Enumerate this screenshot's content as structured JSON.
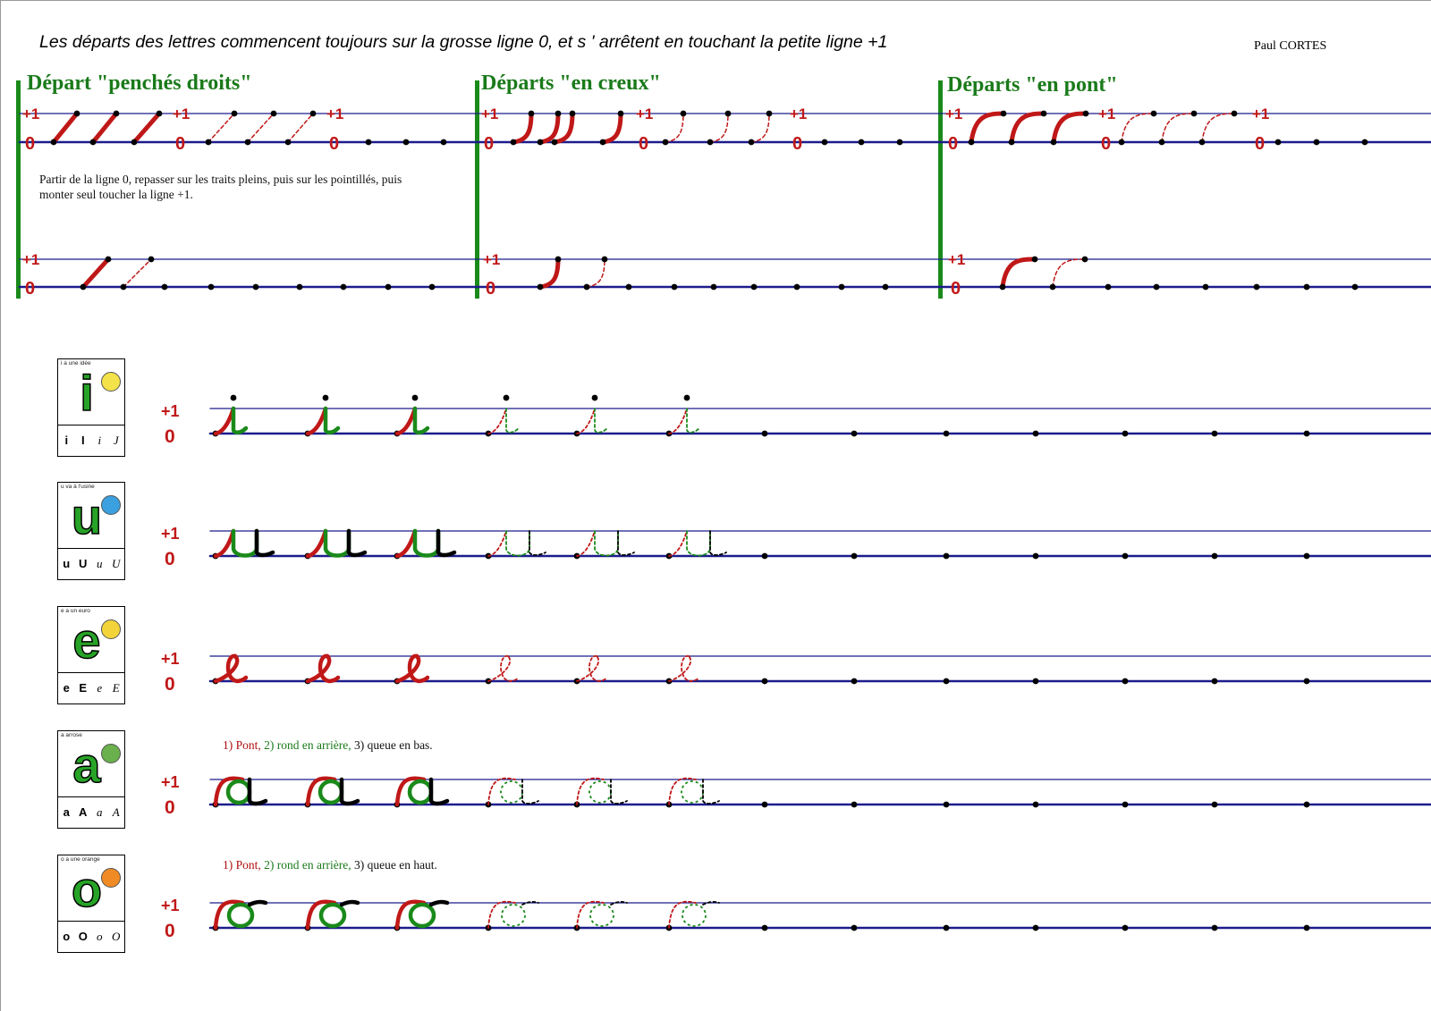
{
  "header": {
    "title": "Les départs des lettres commencent toujours sur la grosse ligne 0, et s ' arrêtent en touchant la petite ligne +1",
    "author": "Paul CORTES"
  },
  "line_labels": {
    "top": "+1",
    "base": "0"
  },
  "sections": [
    {
      "title": "Départ \"penchés droits\""
    },
    {
      "title": "Départs \"en creux\""
    },
    {
      "title": "Départs \"en pont\""
    }
  ],
  "note": "Partir de la ligne 0, repasser sur les traits pleins, puis sur les pointillés, puis monter seul toucher la ligne +1.",
  "letters": [
    {
      "caption": "i  a une idée",
      "letter": "i",
      "variants": [
        "i",
        "I",
        "i",
        "J"
      ],
      "instruction": null
    },
    {
      "caption": "u  va à l'usine",
      "letter": "u",
      "variants": [
        "u",
        "U",
        "u",
        "U"
      ],
      "instruction": null
    },
    {
      "caption": "e  a un euro",
      "letter": "e",
      "variants": [
        "e",
        "E",
        "e",
        "E"
      ],
      "instruction": null
    },
    {
      "caption": "a  arrose",
      "letter": "a",
      "variants": [
        "a",
        "A",
        "a",
        "A"
      ],
      "instruction": {
        "p1": "1) Pont,",
        "p2": " 2) rond en arrière,",
        "p3": " 3) queue en bas."
      }
    },
    {
      "caption": "o  a une orange",
      "letter": "o",
      "variants": [
        "o",
        "O",
        "o",
        "O"
      ],
      "instruction": {
        "p1": "1) Pont,",
        "p2": " 2) rond en arrière,",
        "p3": " 3) queue en haut."
      }
    }
  ],
  "colors": {
    "title_green": "#1a7a1a",
    "stroke_red": "#c01818",
    "line_blue": "#1c1c8c",
    "letter_green": "#1a8a1a"
  }
}
